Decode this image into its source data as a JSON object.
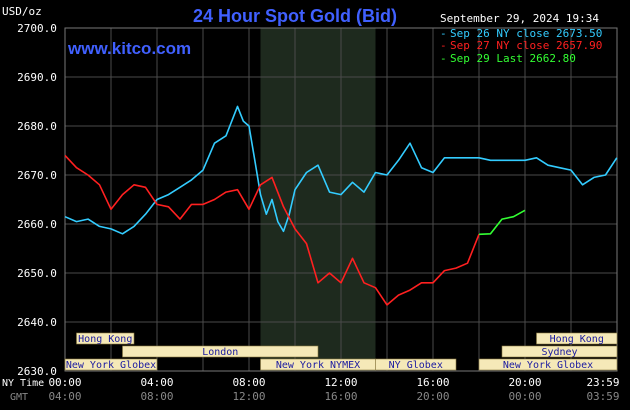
{
  "header": {
    "title": "24 Hour Spot Gold (Bid)",
    "site": "www.kitco.com",
    "datetime": "September 29, 2024 19:34",
    "unit": "USD/oz"
  },
  "colors": {
    "background": "#000000",
    "grid": "#4a4a4a",
    "nymex_band": "#1e2a1e",
    "title": "#4060ff",
    "session_fill": "#f5e9b8",
    "session_text": "#1a1aa0",
    "axis_text": "#ffffff",
    "gmt_text": "#888888"
  },
  "chart_data": {
    "type": "line",
    "title": "24 Hour Spot Gold (Bid)",
    "ylabel": "USD/oz",
    "ylim": [
      2630,
      2700
    ],
    "yticks": [
      "2700.0",
      "2690.0",
      "2680.0",
      "2670.0",
      "2660.0",
      "2650.0",
      "2640.0",
      "2630.0"
    ],
    "x_nytime_labels": [
      "00:00",
      "04:00",
      "08:00",
      "12:00",
      "16:00",
      "20:00",
      "23:59"
    ],
    "x_gmt_labels": [
      "04:00",
      "08:00",
      "12:00",
      "16:00",
      "20:00",
      "00:00",
      "03:59"
    ],
    "x_axis_ny_label": "NY Time",
    "x_axis_gmt_label": "GMT",
    "grid": true,
    "legend_position": "top-right",
    "series": [
      {
        "name": "Sep 26 NY close 2673.50",
        "color": "#33ccff",
        "x": [
          0,
          0.5,
          1.0,
          1.5,
          2.0,
          2.5,
          3.0,
          3.5,
          4.0,
          4.5,
          5.0,
          5.5,
          6.0,
          6.5,
          7.0,
          7.5,
          7.75,
          8.0,
          8.25,
          8.5,
          8.75,
          9.0,
          9.25,
          9.5,
          9.75,
          10.0,
          10.5,
          11.0,
          11.5,
          12.0,
          12.5,
          13.0,
          13.5,
          14.0,
          14.5,
          15.0,
          15.5,
          16.0,
          16.5,
          17.0,
          17.5,
          18.0,
          18.5,
          19.0,
          19.5,
          20.0,
          20.5,
          21.0,
          21.5,
          22.0,
          22.5,
          23.0,
          23.5,
          23.99
        ],
        "y": [
          2661.5,
          2660.5,
          2661.0,
          2659.5,
          2659.0,
          2658.0,
          2659.5,
          2662.0,
          2665.0,
          2666.0,
          2667.5,
          2669.0,
          2671.0,
          2676.5,
          2678.0,
          2684.0,
          2681.0,
          2680.0,
          2673.0,
          2666.0,
          2662.0,
          2665.0,
          2660.5,
          2658.5,
          2662.0,
          2667.0,
          2670.5,
          2672.0,
          2666.5,
          2666.0,
          2668.5,
          2666.5,
          2670.5,
          2670.0,
          2673.0,
          2676.5,
          2671.5,
          2670.5,
          2673.5,
          2673.5,
          2673.5,
          2673.5,
          2673.0,
          2673.0,
          2673.0,
          2673.0,
          2673.5,
          2672.0,
          2671.5,
          2671.0,
          2668.0,
          2669.5,
          2670.0,
          2673.5
        ]
      },
      {
        "name": "Sep 27 NY close 2657.90",
        "color": "#ff2020",
        "x": [
          0,
          0.5,
          1.0,
          1.5,
          2.0,
          2.5,
          3.0,
          3.5,
          4.0,
          4.5,
          5.0,
          5.5,
          6.0,
          6.5,
          7.0,
          7.5,
          8.0,
          8.5,
          9.0,
          9.5,
          10.0,
          10.5,
          11.0,
          11.5,
          12.0,
          12.5,
          13.0,
          13.5,
          14.0,
          14.5,
          15.0,
          15.5,
          16.0,
          16.5,
          17.0,
          17.5,
          18.0
        ],
        "y": [
          2674.0,
          2671.5,
          2670.0,
          2668.0,
          2663.0,
          2666.0,
          2668.0,
          2667.5,
          2664.0,
          2663.5,
          2661.0,
          2664.0,
          2664.0,
          2665.0,
          2666.5,
          2667.0,
          2663.0,
          2668.0,
          2669.5,
          2663.5,
          2659.0,
          2656.0,
          2648.0,
          2650.0,
          2648.0,
          2653.0,
          2648.0,
          2647.0,
          2643.5,
          2645.5,
          2646.5,
          2648.0,
          2648.0,
          2650.5,
          2651.0,
          2652.0,
          2657.9
        ]
      },
      {
        "name": "Sep 29 Last 2662.80",
        "color": "#33ff33",
        "x": [
          18.0,
          18.5,
          19.0,
          19.5,
          20.0
        ],
        "y": [
          2657.9,
          2658.0,
          2661.0,
          2661.5,
          2662.8
        ]
      }
    ]
  },
  "sessions": [
    {
      "label": "Hong Kong",
      "start": 0.5,
      "end": 3.0,
      "row": 0
    },
    {
      "label": "London",
      "start": 2.5,
      "end": 11.0,
      "row": 1
    },
    {
      "label": "New York Globex",
      "start": 0,
      "end": 4.0,
      "row": 2
    },
    {
      "label": "New York NYMEX",
      "start": 8.5,
      "end": 13.5,
      "row": 2
    },
    {
      "label": "NY Globex",
      "start": 13.5,
      "end": 17.0,
      "row": 2
    },
    {
      "label": "Hong Kong",
      "start": 20.5,
      "end": 24,
      "row": 0
    },
    {
      "label": "Sydney",
      "start": 19.0,
      "end": 24,
      "row": 1
    },
    {
      "label": "New York Globex",
      "start": 18.0,
      "end": 24,
      "row": 2
    }
  ],
  "nymex_band": [
    8.5,
    13.5
  ]
}
